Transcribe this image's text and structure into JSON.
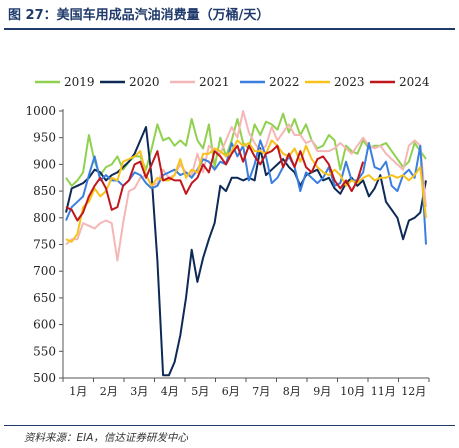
{
  "title": "图 27：美国车用成品汽油消费量（万桶/天）",
  "source": "资料来源：EIA，信达证券研发中心",
  "chart_data": {
    "type": "line",
    "title": "图 27：美国车用成品汽油消费量（万桶/天）",
    "xlabel": "",
    "ylabel": "",
    "ylim": [
      500,
      1000
    ],
    "yticks": [
      500,
      550,
      600,
      650,
      700,
      750,
      800,
      850,
      900,
      950,
      1000
    ],
    "month_labels": [
      "1月",
      "2月",
      "3月",
      "4月",
      "5月",
      "6月",
      "7月",
      "8月",
      "9月",
      "10月",
      "11月",
      "12月"
    ],
    "x_unit": "week",
    "grid": false,
    "legend": "top",
    "series": [
      {
        "name": "2019",
        "color": "#8fd14f",
        "values": [
          875,
          860,
          870,
          885,
          955,
          905,
          880,
          895,
          900,
          915,
          890,
          905,
          915,
          915,
          890,
          930,
          975,
          945,
          950,
          935,
          945,
          935,
          985,
          945,
          930,
          975,
          895,
          950,
          915,
          945,
          985,
          940,
          930,
          975,
          955,
          980,
          975,
          965,
          995,
          960,
          985,
          955,
          975,
          945,
          930,
          935,
          955,
          945,
          890,
          935,
          925,
          920,
          945,
          930,
          935,
          935,
          940,
          925,
          910,
          895,
          905,
          940,
          925,
          910
        ]
      },
      {
        "name": "2020",
        "color": "#0d2a57",
        "values": [
          810,
          855,
          860,
          865,
          875,
          890,
          885,
          870,
          880,
          885,
          895,
          905,
          920,
          945,
          970,
          875,
          720,
          505,
          505,
          530,
          580,
          650,
          740,
          680,
          725,
          760,
          790,
          860,
          850,
          875,
          875,
          870,
          875,
          870,
          930,
          880,
          890,
          900,
          910,
          895,
          885,
          860,
          880,
          885,
          890,
          870,
          875,
          855,
          845,
          865,
          875,
          860,
          870,
          840,
          855,
          880,
          830,
          815,
          800,
          760,
          795,
          800,
          810,
          870
        ]
      },
      {
        "name": "2021",
        "color": "#f4b6b6",
        "values": [
          750,
          760,
          760,
          790,
          785,
          780,
          790,
          795,
          790,
          720,
          790,
          850,
          855,
          875,
          880,
          860,
          865,
          890,
          875,
          880,
          900,
          885,
          880,
          920,
          885,
          935,
          925,
          920,
          945,
          970,
          950,
          1000,
          960,
          940,
          925,
          935,
          970,
          945,
          960,
          975,
          955,
          955,
          940,
          945,
          925,
          925,
          925,
          930,
          940,
          930,
          920,
          935,
          950,
          935,
          930,
          935,
          920,
          910,
          900,
          890,
          935,
          945,
          935,
          820
        ]
      },
      {
        "name": "2022",
        "color": "#3a7ee0",
        "values": [
          795,
          820,
          830,
          840,
          880,
          915,
          870,
          880,
          870,
          870,
          860,
          870,
          885,
          880,
          865,
          855,
          860,
          880,
          885,
          890,
          880,
          885,
          875,
          890,
          910,
          905,
          890,
          905,
          900,
          940,
          915,
          935,
          870,
          900,
          945,
          915,
          865,
          875,
          895,
          915,
          895,
          850,
          885,
          875,
          865,
          875,
          895,
          860,
          865,
          905,
          870,
          870,
          885,
          940,
          895,
          890,
          905,
          860,
          850,
          880,
          890,
          875,
          935,
          750
        ]
      },
      {
        "name": "2023",
        "color": "#f7c21b",
        "values": [
          760,
          755,
          770,
          820,
          830,
          855,
          840,
          850,
          875,
          870,
          905,
          910,
          915,
          925,
          880,
          860,
          875,
          870,
          870,
          880,
          910,
          875,
          890,
          885,
          920,
          920,
          930,
          925,
          915,
          925,
          945,
          935,
          940,
          925,
          925,
          920,
          945,
          935,
          920,
          915,
          930,
          905,
          935,
          910,
          895,
          885,
          880,
          890,
          880,
          860,
          870,
          865,
          875,
          880,
          870,
          875,
          875,
          880,
          875,
          880,
          870,
          880,
          895,
          800
        ]
      },
      {
        "name": "2024",
        "color": "#c0161c",
        "values": [
          820,
          815,
          795,
          810,
          840,
          860,
          875,
          855,
          815,
          820,
          860,
          870,
          900,
          905,
          875,
          900,
          925,
          870,
          875,
          870,
          870,
          845,
          865,
          875,
          900,
          885,
          925,
          915,
          900,
          920,
          935,
          905,
          935,
          915,
          900,
          920,
          925,
          935,
          895,
          920,
          895,
          925,
          895,
          885,
          910,
          915,
          900,
          870,
          855,
          870,
          850,
          870,
          905
        ]
      }
    ]
  }
}
